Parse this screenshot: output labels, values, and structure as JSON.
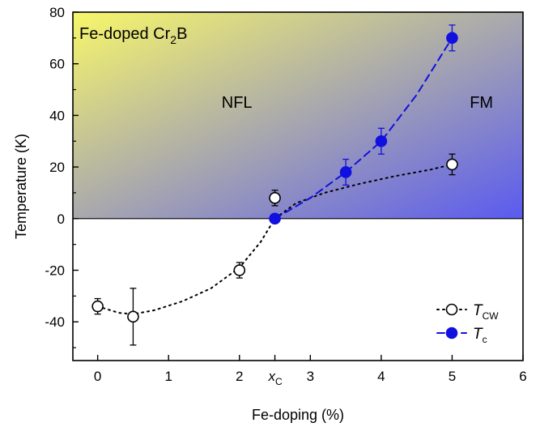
{
  "chart_data": {
    "type": "scatter",
    "xlabel": "Fe-doping (%)",
    "ylabel": "Temperature (K)",
    "xlim": [
      -0.35,
      6
    ],
    "ylim": [
      -55,
      80
    ],
    "x_ticks": [
      0,
      1,
      2,
      3,
      4,
      5,
      6
    ],
    "y_ticks": [
      -40,
      -20,
      0,
      20,
      40,
      60,
      80
    ],
    "x_special_tick": {
      "label_main": "x",
      "label_sub": "C",
      "value": 2.5
    },
    "grid": false,
    "legend_position": "bottom-right",
    "annotations": {
      "title_main": "Fe-doped Cr",
      "title_sub": "2",
      "title_end": "B",
      "region_left": "NFL",
      "region_right": "FM"
    },
    "background_gradient": {
      "from": "#f8f76a",
      "to": "#5a5af0",
      "region": "y >= 0"
    },
    "series": [
      {
        "label_main": "T",
        "label_sub": "CW",
        "marker": "open-circle",
        "line": "dotted",
        "color": "#000000",
        "points": [
          {
            "x": 0,
            "y": -34,
            "err": 3
          },
          {
            "x": 0.5,
            "y": -38,
            "err_up": 11,
            "err_down": 11
          },
          {
            "x": 2,
            "y": -20,
            "err": 3
          },
          {
            "x": 2.5,
            "y": 8,
            "err": 3
          },
          {
            "x": 5,
            "y": 21,
            "err": 4
          }
        ],
        "curve": [
          [
            0,
            -34
          ],
          [
            0.3,
            -36.5
          ],
          [
            0.5,
            -37
          ],
          [
            0.8,
            -35.5
          ],
          [
            1.2,
            -32
          ],
          [
            1.6,
            -27
          ],
          [
            2.0,
            -19
          ],
          [
            2.3,
            -9
          ],
          [
            2.5,
            0
          ],
          [
            2.8,
            6
          ],
          [
            3.2,
            10
          ],
          [
            3.7,
            13.5
          ],
          [
            4.2,
            16.5
          ],
          [
            4.7,
            19
          ],
          [
            5,
            21
          ]
        ]
      },
      {
        "label_main": "T",
        "label_sub": "c",
        "marker": "filled-circle",
        "line": "dashed",
        "color": "#1010e0",
        "points": [
          {
            "x": 2.5,
            "y": 0,
            "err": 0
          },
          {
            "x": 3.5,
            "y": 18,
            "err": 5
          },
          {
            "x": 4,
            "y": 30,
            "err": 5
          },
          {
            "x": 5,
            "y": 70,
            "err": 5
          }
        ],
        "curve": [
          [
            2.5,
            0
          ],
          [
            3.0,
            8
          ],
          [
            3.5,
            18
          ],
          [
            4.0,
            30
          ],
          [
            4.5,
            48
          ],
          [
            5.0,
            70
          ]
        ]
      }
    ]
  }
}
